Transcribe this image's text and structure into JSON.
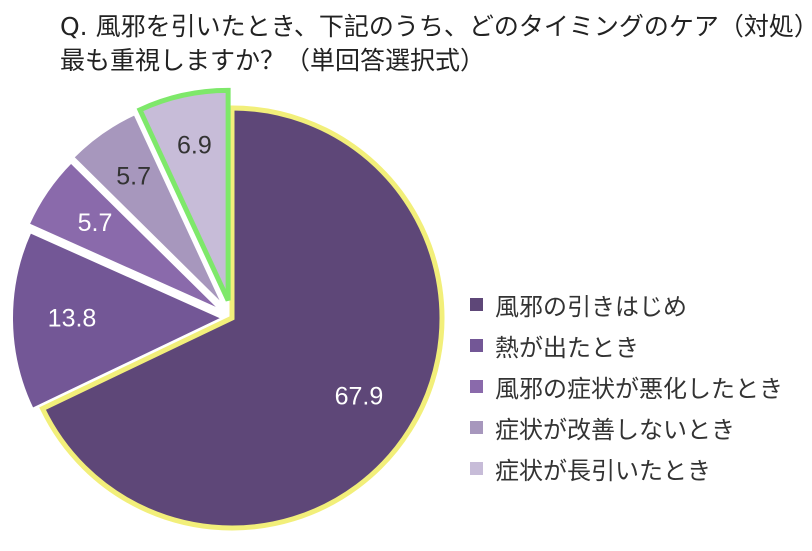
{
  "chart_data": {
    "type": "pie",
    "title_lines": [
      "Q. 風邪を引いたとき、下記のうち、どのタイミングのケア（対処）を",
      "最も重視しますか？（単回答選択式）"
    ],
    "categories": [
      "風邪の引きはじめ",
      "熱が出たとき",
      "風邪の症状が悪化したとき",
      "症状が改善しないとき",
      "症状が長引いたとき"
    ],
    "values": [
      67.9,
      13.8,
      5.7,
      5.7,
      6.9
    ],
    "data_labels": [
      "67.9",
      "13.8",
      "5.7",
      "5.7",
      "6.9"
    ],
    "colors": [
      "#5e4778",
      "#735796",
      "#8a6aab",
      "#a797bd",
      "#c7bcd8"
    ],
    "highlight_colors": {
      "風邪の引きはじめ": "#f2ef7a",
      "症状が長引いたとき": "#7ee86a"
    },
    "legend_position": "right",
    "start_angle_deg": 0,
    "direction": "clockwise"
  }
}
